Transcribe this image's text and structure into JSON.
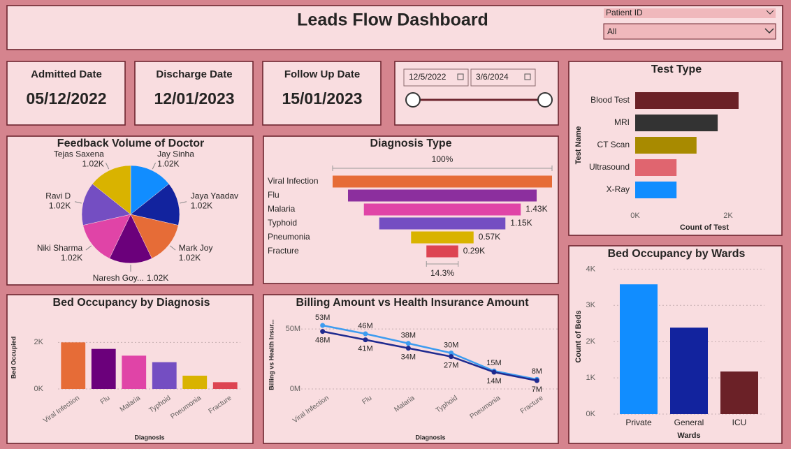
{
  "header": {
    "title": "Leads Flow Dashboard",
    "filter_label": "Patient ID",
    "filter_value": "All"
  },
  "cards": [
    {
      "label": "Admitted Date",
      "value": "05/12/2022"
    },
    {
      "label": "Discharge Date",
      "value": "12/01/2023"
    },
    {
      "label": "Follow Up Date",
      "value": "15/01/2023"
    }
  ],
  "date_slicer": {
    "start": "12/5/2022",
    "end": "3/6/2024"
  },
  "chart_data": [
    {
      "type": "pie",
      "title": "Feedback Volume of Doctor",
      "categories": [
        "Jay Sinha",
        "Jaya Yaadav",
        "Mark Joy",
        "Naresh Goy...",
        "Niki Sharma",
        "Ravi D",
        "Tejas Saxena"
      ],
      "values": [
        1020,
        1020,
        1020,
        1020,
        1020,
        1020,
        1020
      ],
      "value_labels": [
        "1.02K",
        "1.02K",
        "1.02K",
        "1.02K",
        "1.02K",
        "1.02K",
        "1.02K"
      ],
      "colors": [
        "#118dff",
        "#12239e",
        "#e66c37",
        "#6b007b",
        "#e044a7",
        "#744ec2",
        "#d9b300"
      ]
    },
    {
      "type": "funnel",
      "title": "Diagnosis Type",
      "categories": [
        "Viral Infection",
        "Flu",
        "Malaria",
        "Typhoid",
        "Pneumonia",
        "Fracture"
      ],
      "values": [
        2000,
        1720,
        1430,
        1150,
        570,
        290
      ],
      "value_labels": [
        null,
        null,
        "1.43K",
        "1.15K",
        "0.57K",
        "0.29K"
      ],
      "top_label": "100%",
      "bottom_label": "14.3%",
      "colors": [
        "#e66c37",
        "#8c2f9e",
        "#e044a7",
        "#744ec2",
        "#d9b300",
        "#dd4452"
      ]
    },
    {
      "type": "bar",
      "orientation": "horizontal",
      "title": "Test Type",
      "categories": [
        "Blood Test",
        "MRI",
        "CT Scan",
        "Ultrasound",
        "X-Ray"
      ],
      "values": [
        2225,
        1775,
        1320,
        890,
        890
      ],
      "colors": [
        "#6b2127",
        "#333333",
        "#a88a00",
        "#e0656f",
        "#118dff"
      ],
      "x_label": "Count of Test",
      "y_label": "Test Name",
      "xlim": [
        0,
        2300
      ],
      "xticks": [
        {
          "value": 0,
          "label": "0K"
        },
        {
          "value": 2000,
          "label": "2K"
        }
      ]
    },
    {
      "type": "bar",
      "title": "Bed Occupancy by Diagnosis",
      "categories": [
        "Viral Infection",
        "Flu",
        "Malaria",
        "Typhoid",
        "Pneumonia",
        "Fracture"
      ],
      "values": [
        2000,
        1720,
        1430,
        1150,
        570,
        290
      ],
      "colors": [
        "#e66c37",
        "#6b007b",
        "#e044a7",
        "#744ec2",
        "#d9b300",
        "#dd4452"
      ],
      "x_label": "Diagnosis",
      "y_label": "Bed Occupied",
      "ylim": [
        0,
        2400
      ],
      "yticks": [
        {
          "value": 0,
          "label": "0K"
        },
        {
          "value": 2000,
          "label": "2K"
        }
      ],
      "grid": true
    },
    {
      "type": "line",
      "title": "Billing Amount vs Health Insurance Amount",
      "categories": [
        "Viral Infection",
        "Flu",
        "Malaria",
        "Typhoid",
        "Pneumonia",
        "Fracture"
      ],
      "series": [
        {
          "color": "#3d9cf0",
          "values": [
            53000000,
            46000000,
            38000000,
            30000000,
            15000000,
            8000000
          ],
          "value_labels": [
            "53M",
            "46M",
            "38M",
            "30M",
            "15M",
            "8M"
          ]
        },
        {
          "color": "#1f2a8f",
          "values": [
            48000000,
            41000000,
            34000000,
            27000000,
            14000000,
            7000000
          ],
          "value_labels": [
            "48M",
            "41M",
            "34M",
            "27M",
            "14M",
            "7M"
          ]
        }
      ],
      "x_label": "Diagnosis",
      "y_label": "Billing vs Health Insur...",
      "ylim": [
        0,
        60000000
      ],
      "yticks": [
        {
          "value": 0,
          "label": "0M"
        },
        {
          "value": 50000000,
          "label": "50M"
        }
      ],
      "grid": true
    },
    {
      "type": "bar",
      "title": "Bed Occupancy by Wards",
      "categories": [
        "Private",
        "General",
        "ICU"
      ],
      "values": [
        3580,
        2385,
        1175
      ],
      "colors": [
        "#118dff",
        "#12239e",
        "#6b2127"
      ],
      "x_label": "Wards",
      "y_label": "Count of Beds",
      "ylim": [
        0,
        4200
      ],
      "yticks": [
        {
          "value": 0,
          "label": "0K"
        },
        {
          "value": 1000,
          "label": "1K"
        },
        {
          "value": 2000,
          "label": "2K"
        },
        {
          "value": 3000,
          "label": "3K"
        },
        {
          "value": 4000,
          "label": "4K"
        }
      ],
      "grid": true
    }
  ]
}
